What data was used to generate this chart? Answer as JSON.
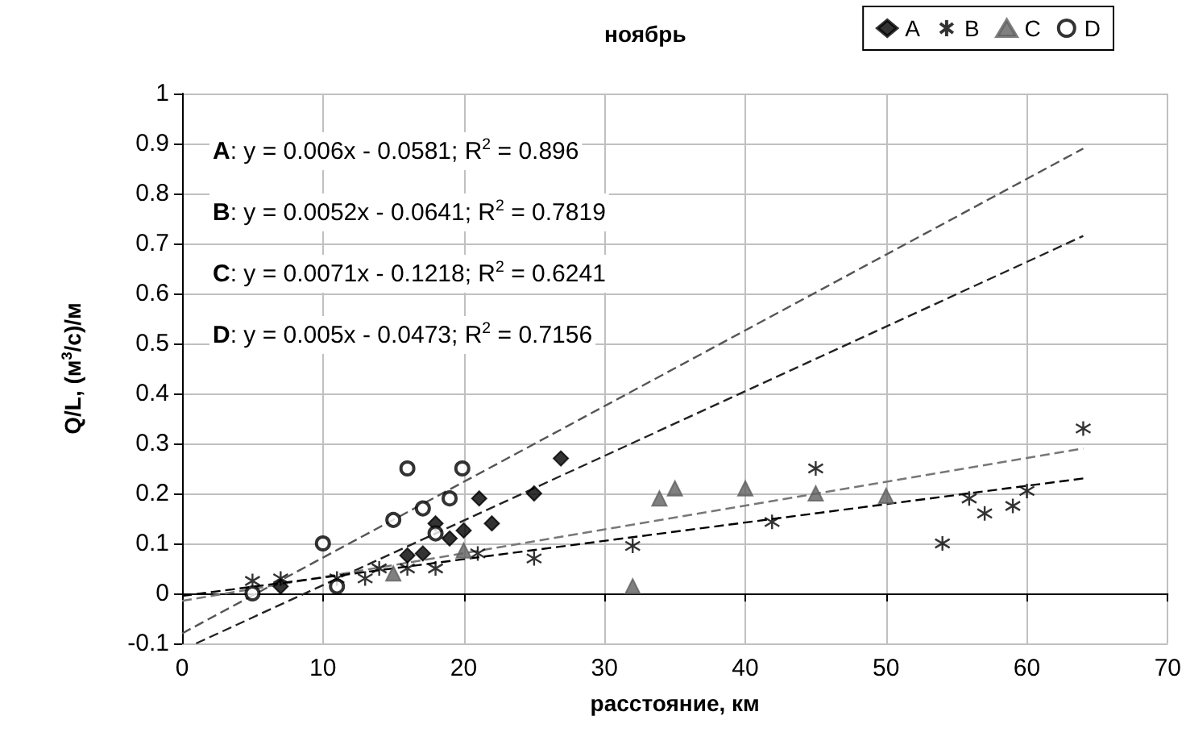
{
  "chart_data": {
    "type": "scatter",
    "title": "ноябрь",
    "xlabel": "расстояние, км",
    "ylabel": "Q/L, (м$^{3}$/с)/м",
    "annotations": [
      "A: y = 0.006x - 0.0581; R$^{2}$ = 0.896",
      "B: y = 0.0052x - 0.0641; R$^{2}$ = 0.7819",
      "C: y = 0.0071x - 0.1218; R$^{2}$ = 0.6241",
      "D: y = 0.005x - 0.0473; R$^{2}$ = 0.7156"
    ],
    "xlim": [
      0,
      70
    ],
    "xticks": [
      0,
      10,
      20,
      30,
      40,
      50,
      60,
      70
    ],
    "ylim": [
      -0.1,
      1
    ],
    "yticks": [
      -0.1,
      0,
      0.1,
      0.2,
      0.3,
      0.4,
      0.5,
      0.6,
      0.7,
      0.8,
      0.9,
      1
    ],
    "grid": true,
    "legend": "top right",
    "series": [
      {
        "name": "A",
        "color": "#000000",
        "marker": "diamond",
        "x": [
          7,
          16,
          17.1,
          18,
          19,
          20,
          21.1,
          22,
          25,
          26.9
        ],
        "values": [
          0.014,
          0.076,
          0.08,
          0.14,
          0.11,
          0.126,
          0.19,
          0.14,
          0.2,
          0.27
        ]
      },
      {
        "name": "B",
        "color": "#000000",
        "marker": "cross",
        "x": [
          5,
          7,
          11,
          13,
          14,
          16,
          18,
          21,
          25,
          32,
          41.9,
          45,
          54,
          55.9,
          57,
          59,
          60,
          64
        ],
        "values": [
          0.025,
          0.03,
          0.03,
          0.03,
          0.05,
          0.05,
          0.05,
          0.08,
          0.07,
          0.095,
          0.143,
          0.25,
          0.1,
          0.19,
          0.16,
          0.175,
          0.205,
          0.33
        ]
      },
      {
        "name": "C",
        "color": "#606060",
        "marker": "triangle",
        "x": [
          15,
          20,
          32,
          33.9,
          35,
          40,
          45,
          50
        ],
        "values": [
          0.04,
          0.086,
          0.014,
          0.19,
          0.21,
          0.21,
          0.2,
          0.195
        ]
      },
      {
        "name": "D",
        "color": "#000000",
        "marker": "circle",
        "x": [
          5,
          10,
          11,
          15,
          16,
          17.1,
          18,
          19,
          19.9
        ],
        "values": [
          0,
          0.1,
          0.014,
          0.147,
          0.25,
          0.17,
          0.12,
          0.19,
          0.25
        ]
      },
      {
        "type": "line",
        "color": "#555555",
        "line_style": "dashed",
        "marker": "none",
        "x": [
          0,
          64
        ],
        "values": [
          -0.08,
          0.89
        ]
      },
      {
        "type": "line",
        "color": "#222222",
        "line_style": "dashed",
        "marker": "none",
        "x": [
          1,
          64
        ],
        "values": [
          -0.1,
          0.715
        ]
      },
      {
        "type": "line",
        "color": "#777777",
        "line_style": "dashed",
        "marker": "none",
        "x": [
          0,
          64
        ],
        "values": [
          -0.015,
          0.29
        ]
      },
      {
        "type": "line",
        "color": "#000000",
        "line_style": "dashed",
        "marker": "none",
        "x": [
          0,
          64
        ],
        "values": [
          -0.005,
          0.23
        ]
      }
    ]
  }
}
